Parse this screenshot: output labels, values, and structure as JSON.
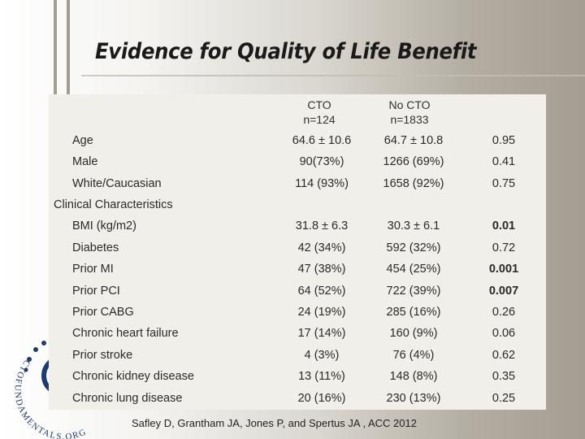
{
  "slide": {
    "title": "Evidence for Quality of Life Benefit",
    "footnote": "Safley D, Grantham JA, Jones P, and Spertus JA , ACC 2012"
  },
  "table": {
    "headers": {
      "cto": {
        "line1": "CTO",
        "line2": "n=124"
      },
      "nocto": {
        "line1": "No CTO",
        "line2": "n=1833"
      }
    },
    "section_label": "Clinical Characteristics",
    "demographics": [
      {
        "label": "Age",
        "cto": "64.6 ± 10.6",
        "nocto": "64.7 ± 10.8",
        "p": "0.95",
        "bold": false
      },
      {
        "label": "Male",
        "cto": "90(73%)",
        "nocto": "1266 (69%)",
        "p": "0.41",
        "bold": false
      },
      {
        "label": "White/Caucasian",
        "cto": "114 (93%)",
        "nocto": "1658 (92%)",
        "p": "0.75",
        "bold": false
      }
    ],
    "clinical": [
      {
        "label": "BMI (kg/m2)",
        "cto": "31.8 ± 6.3",
        "nocto": "30.3 ± 6.1",
        "p": "0.01",
        "bold": true
      },
      {
        "label": "Diabetes",
        "cto": "42 (34%)",
        "nocto": "592 (32%)",
        "p": "0.72",
        "bold": false
      },
      {
        "label": "Prior MI",
        "cto": "47 (38%)",
        "nocto": "454 (25%)",
        "p": "0.001",
        "bold": true
      },
      {
        "label": "Prior PCI",
        "cto": "64 (52%)",
        "nocto": "722 (39%)",
        "p": "0.007",
        "bold": true
      },
      {
        "label": "Prior CABG",
        "cto": "24 (19%)",
        "nocto": "285 (16%)",
        "p": "0.26",
        "bold": false
      },
      {
        "label": "Chronic heart failure",
        "cto": "17 (14%)",
        "nocto": "160 (9%)",
        "p": "0.06",
        "bold": false
      },
      {
        "label": "Prior stroke",
        "cto": "4 (3%)",
        "nocto": "76 (4%)",
        "p": "0.62",
        "bold": false
      },
      {
        "label": "Chronic kidney disease",
        "cto": "13 (11%)",
        "nocto": "148 (8%)",
        "p": "0.35",
        "bold": false
      },
      {
        "label": "Chronic lung disease",
        "cto": "20 (16%)",
        "nocto": "230 (13%)",
        "p": "0.25",
        "bold": false
      }
    ]
  },
  "logo": {
    "text": "CTOFUNDAMENTALS.ORG",
    "icon": "ctofundamentals-logo",
    "color": "#1f3a6e"
  }
}
